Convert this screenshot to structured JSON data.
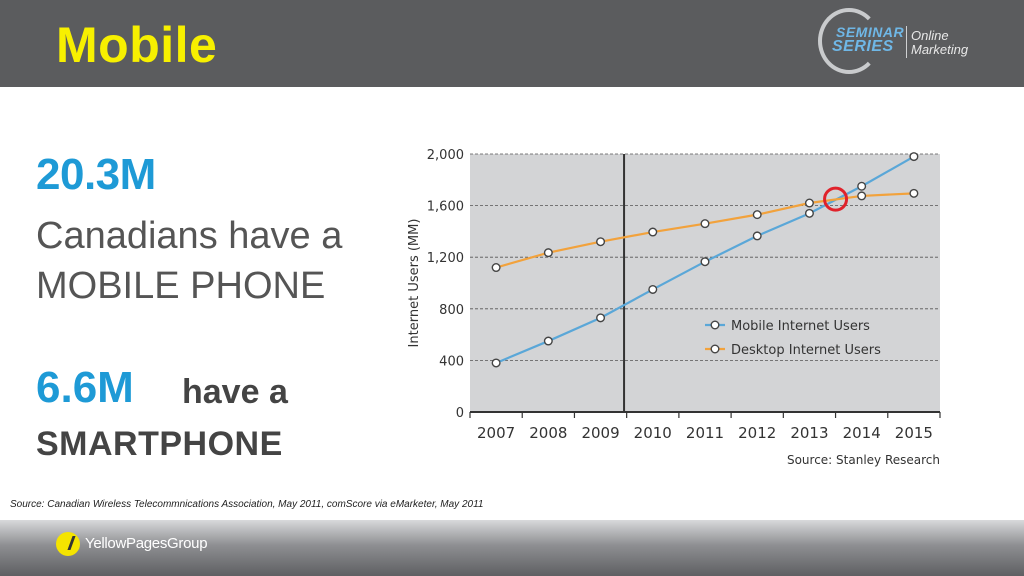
{
  "header": {
    "title": "Mobile",
    "logo": {
      "line1": "SEMINAR",
      "line2": "SERIES",
      "line3": "Online",
      "line4": "Marketing"
    }
  },
  "stats": {
    "stat1_number": "20.3M",
    "stat1_line1": "Canadians have a",
    "stat1_line2": "MOBILE PHONE",
    "stat2_number": "6.6M",
    "stat2_tail": "have a",
    "stat2_line2": "SMARTPHONE"
  },
  "source_note": "Source: Canadian Wireless Telecommnications Association, May 2011, comScore via eMarketer, May 2011",
  "footer": {
    "brand": "YellowPagesGroup"
  },
  "colors": {
    "header_bg": "#5b5c5e",
    "title": "#f7f000",
    "accent_blue": "#1e9ad6",
    "mobile_series": "#5aa7d8",
    "desktop_series": "#f2a23c",
    "highlight_circle": "#e0222b",
    "plot_bg": "#d3d4d6"
  },
  "chart_data": {
    "type": "line",
    "title": "",
    "xlabel": "",
    "ylabel": "Internet Users (MM)",
    "x": [
      "2007",
      "2008",
      "2009",
      "2010",
      "2011",
      "2012",
      "2013",
      "2014",
      "2015"
    ],
    "ylim": [
      0,
      2000
    ],
    "yticks": [
      0,
      400,
      800,
      1200,
      1600,
      2000
    ],
    "ytick_labels": [
      "0",
      "400",
      "800",
      "1,200",
      "1,600",
      "2,000"
    ],
    "grid": true,
    "legend_position": "bottom-right",
    "vertical_marker_x": "2009.45",
    "highlight_point": {
      "x": "2013.5",
      "y": 1650
    },
    "source": "Source: Stanley Research",
    "series": [
      {
        "name": "Mobile Internet Users",
        "color": "#5aa7d8",
        "values": [
          380,
          550,
          730,
          950,
          1165,
          1365,
          1540,
          1750,
          1980
        ]
      },
      {
        "name": "Desktop Internet Users",
        "color": "#f2a23c",
        "values": [
          1120,
          1235,
          1320,
          1395,
          1460,
          1530,
          1620,
          1675,
          1695
        ]
      }
    ]
  }
}
